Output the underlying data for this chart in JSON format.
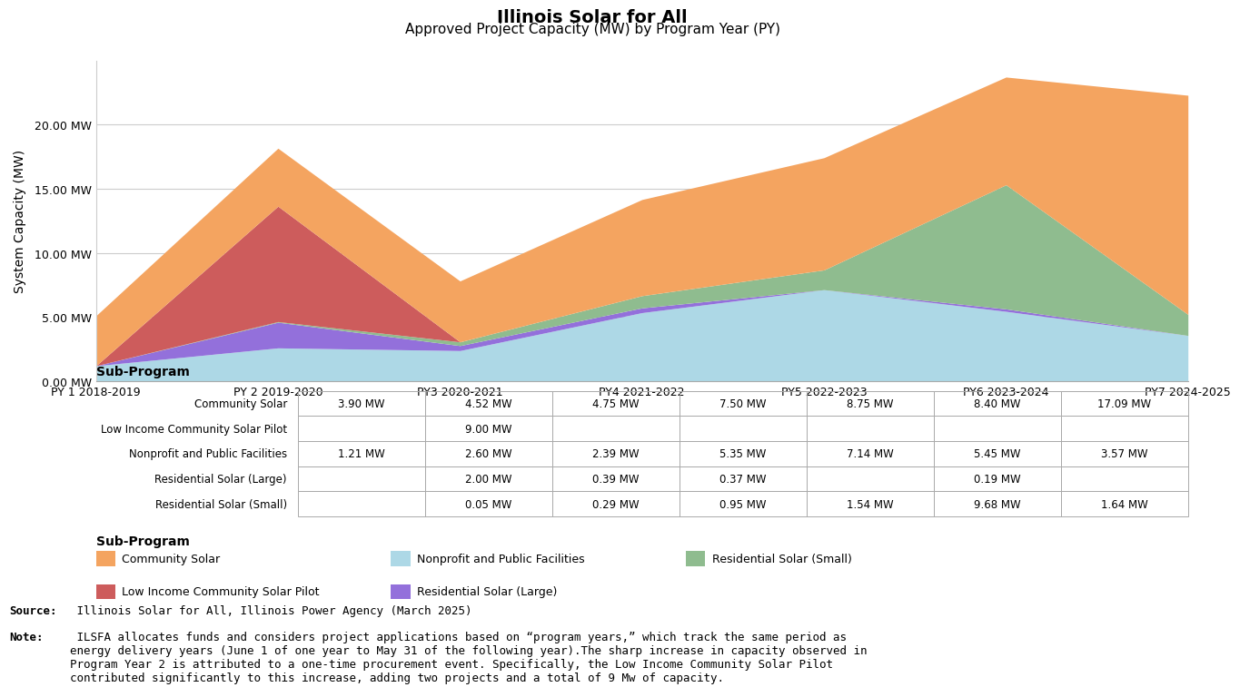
{
  "title_line1": "Illinois Solar for All",
  "title_line2": "Approved Project Capacity (MW) by Program Year (PY)",
  "program_years": [
    "PY 1 2018-2019",
    "PY 2 2019-2020",
    "PY3 2020-2021",
    "PY4 2021-2022",
    "PY5 2022-2023",
    "PY6 2023-2024",
    "PY7 2024-2025"
  ],
  "series": {
    "Community Solar": [
      3.9,
      4.52,
      4.75,
      7.5,
      8.75,
      8.4,
      17.09
    ],
    "Low Income Community Solar Pilot": [
      0.0,
      9.0,
      0.0,
      0.0,
      0.0,
      0.0,
      0.0
    ],
    "Nonprofit and Public Facilities": [
      1.21,
      2.6,
      2.39,
      5.35,
      7.14,
      5.45,
      3.57
    ],
    "Residential Solar (Large)": [
      0.0,
      2.0,
      0.39,
      0.37,
      0.0,
      0.19,
      0.0
    ],
    "Residential Solar (Small)": [
      0.0,
      0.05,
      0.29,
      0.95,
      1.54,
      9.68,
      1.64
    ]
  },
  "colors": {
    "Community Solar": "#F4A460",
    "Low Income Community Solar Pilot": "#CD5C5C",
    "Nonprofit and Public Facilities": "#ADD8E6",
    "Residential Solar (Large)": "#9370DB",
    "Residential Solar (Small)": "#8FBC8F"
  },
  "stack_order": [
    "Nonprofit and Public Facilities",
    "Residential Solar (Large)",
    "Residential Solar (Small)",
    "Low Income Community Solar Pilot",
    "Community Solar"
  ],
  "ylabel": "System Capacity (MW)",
  "yticks": [
    0.0,
    5.0,
    10.0,
    15.0,
    20.0
  ],
  "ytick_labels": [
    "0.00 MW",
    "5.00 MW",
    "10.00 MW",
    "15.00 MW",
    "20.00 MW"
  ],
  "table_row_order": [
    "Community Solar",
    "Low Income Community Solar Pilot",
    "Nonprofit and Public Facilities",
    "Residential Solar (Large)",
    "Residential Solar (Small)"
  ],
  "table_data": {
    "Community Solar": [
      "3.90 MW",
      "4.52 MW",
      "4.75 MW",
      "7.50 MW",
      "8.75 MW",
      "8.40 MW",
      "17.09 MW"
    ],
    "Low Income Community Solar Pilot": [
      "",
      "9.00 MW",
      "",
      "",
      "",
      "",
      ""
    ],
    "Nonprofit and Public Facilities": [
      "1.21 MW",
      "2.60 MW",
      "2.39 MW",
      "5.35 MW",
      "7.14 MW",
      "5.45 MW",
      "3.57 MW"
    ],
    "Residential Solar (Large)": [
      "",
      "2.00 MW",
      "0.39 MW",
      "0.37 MW",
      "",
      "0.19 MW",
      ""
    ],
    "Residential Solar (Small)": [
      "",
      "0.05 MW",
      "0.29 MW",
      "0.95 MW",
      "1.54 MW",
      "9.68 MW",
      "1.64 MW"
    ]
  },
  "legend_layout": [
    [
      "Community Solar",
      "Nonprofit and Public Facilities",
      "Residential Solar (Small)"
    ],
    [
      "Low Income Community Solar Pilot",
      "Residential Solar (Large)"
    ]
  ],
  "source_bold": "Source:",
  "source_rest": " Illinois Solar for All, Illinois Power Agency (March 2025)",
  "note_bold": "Note:",
  "note_rest": " ILSFA allocates funds and considers project applications based on “program years,” which track the same period as\nenergy delivery years (June 1 of one year to May 31 of the following year).The sharp increase in capacity observed in\nProgram Year 2 is attributed to a one-time procurement event. Specifically, the Low Income Community Solar Pilot\ncontributed significantly to this increase, adding two projects and a total of 9 Mw of capacity.",
  "background_color": "#FFFFFF"
}
